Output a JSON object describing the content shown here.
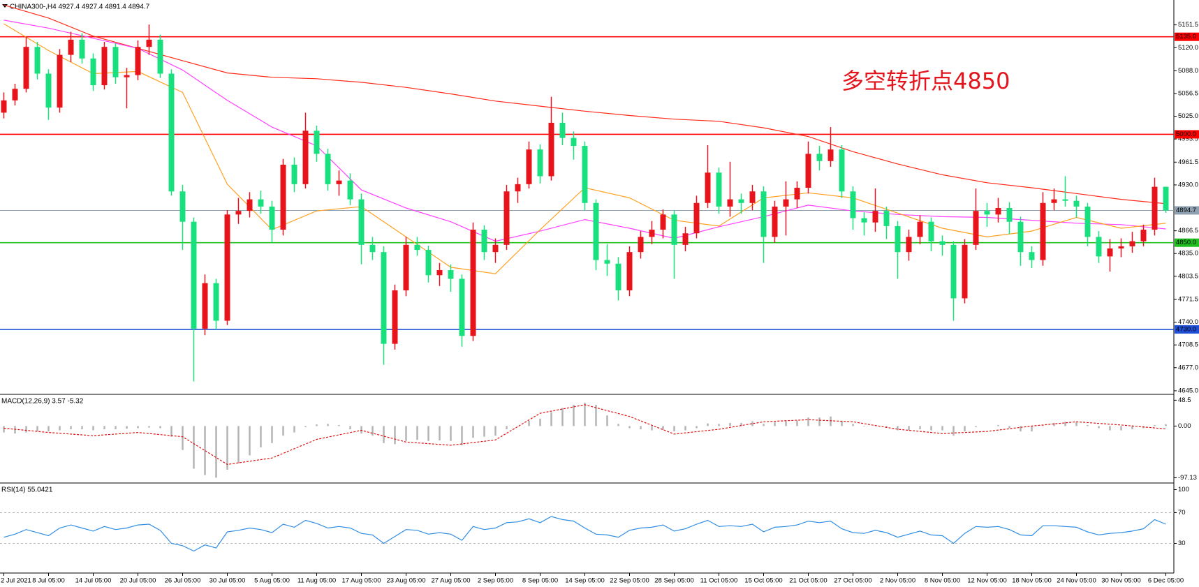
{
  "chart_data": [
    {
      "type": "candlestick",
      "title": "CHINA300-,H4  4927.4 4927.4 4891.4 4894.7",
      "annotation": "多空转折点4850",
      "up_color": "#e8141c",
      "down_color": "#19e07f",
      "ylim": [
        4642,
        5184
      ],
      "yticks": [
        5151.5,
        {
          "value": 5120,
          "label": "5120.0"
        },
        {
          "value": 5088,
          "label": "5088.0"
        },
        5056.5,
        {
          "value": 5025,
          "label": "5025.0"
        },
        4993.5,
        4961.5,
        {
          "value": 4930,
          "label": "4930.0"
        },
        4866.5,
        {
          "value": 4835,
          "label": "4835.0"
        },
        4803.5,
        4771.5,
        {
          "value": 4740,
          "label": "4740.0"
        },
        4708.5,
        {
          "value": 4677,
          "label": "4677.0"
        },
        {
          "value": 4645,
          "label": "4645.0"
        }
      ],
      "levels": [
        {
          "value": 5135,
          "label": "5135.0",
          "color": "#ff0000",
          "text_color": "#ffffff"
        },
        {
          "value": 5000,
          "label": "5000.0",
          "color": "#ff0000",
          "text_color": "#ffffff"
        },
        {
          "value": 4894.7,
          "label": "4894.7",
          "color": "#8fa0b0",
          "text_color": "#000000"
        },
        {
          "value": 4850,
          "label": "4850.0",
          "color": "#1fbf1f",
          "text_color": "#ffffff"
        },
        {
          "value": 4730,
          "label": "4730.0",
          "color": "#1f4fd6",
          "text_color": "#ffffff"
        }
      ],
      "xticks": [
        {
          "value": 0,
          "label": "2 Jul 2021"
        },
        {
          "value": 4,
          "label": "8 Jul 05:00"
        },
        {
          "value": 8,
          "label": "14 Jul 05:00"
        },
        {
          "value": 12,
          "label": "20 Jul 05:00"
        },
        {
          "value": 16,
          "label": "26 Jul 05:00"
        },
        {
          "value": 20,
          "label": "30 Jul 05:00"
        },
        {
          "value": 24,
          "label": "5 Aug 05:00"
        },
        {
          "value": 28,
          "label": "11 Aug 05:00"
        },
        {
          "value": 32,
          "label": "17 Aug 05:00"
        },
        {
          "value": 36,
          "label": "23 Aug 05:00"
        },
        {
          "value": 40,
          "label": "27 Aug 05:00"
        },
        {
          "value": 44,
          "label": "2 Sep 05:00"
        },
        {
          "value": 48,
          "label": "8 Sep 05:00"
        },
        {
          "value": 52,
          "label": "14 Sep 05:00"
        },
        {
          "value": 56,
          "label": "22 Sep 05:00"
        },
        {
          "value": 60,
          "label": "28 Sep 05:00"
        },
        {
          "value": 64,
          "label": "11 Oct 05:00"
        },
        {
          "value": 68,
          "label": "15 Oct 05:00"
        },
        {
          "value": 72,
          "label": "21 Oct 05:00"
        },
        {
          "value": 76,
          "label": "27 Oct 05:00"
        },
        {
          "value": 80,
          "label": "2 Nov 05:00"
        },
        {
          "value": 84,
          "label": "8 Nov 05:00"
        },
        {
          "value": 88,
          "label": "12 Nov 05:00"
        },
        {
          "value": 92,
          "label": "18 Nov 05:00"
        },
        {
          "value": 96,
          "label": "24 Nov 05:00"
        },
        {
          "value": 100,
          "label": "30 Nov 05:00"
        },
        {
          "value": 104,
          "label": "6 Dec 05:00"
        }
      ],
      "ohlc": [
        [
          5030,
          5058,
          5022,
          5047
        ],
        [
          5047,
          5070,
          5040,
          5063
        ],
        [
          5063,
          5135,
          5058,
          5121
        ],
        [
          5121,
          5128,
          5076,
          5084
        ],
        [
          5084,
          5090,
          5020,
          5037
        ],
        [
          5037,
          5118,
          5030,
          5110
        ],
        [
          5110,
          5142,
          5100,
          5131
        ],
        [
          5131,
          5140,
          5098,
          5105
        ],
        [
          5105,
          5112,
          5060,
          5068
        ],
        [
          5068,
          5128,
          5062,
          5121
        ],
        [
          5121,
          5126,
          5070,
          5079
        ],
        [
          5079,
          5092,
          5036,
          5082
        ],
        [
          5082,
          5130,
          5075,
          5121
        ],
        [
          5121,
          5152,
          5110,
          5131
        ],
        [
          5131,
          5138,
          5078,
          5084
        ],
        [
          5084,
          5090,
          4915,
          4921
        ],
        [
          4921,
          4930,
          4840,
          4879
        ],
        [
          4879,
          4885,
          4658,
          4731
        ],
        [
          4731,
          4806,
          4722,
          4794
        ],
        [
          4794,
          4800,
          4730,
          4742
        ],
        [
          4742,
          4895,
          4736,
          4889
        ],
        [
          4889,
          4912,
          4876,
          4894
        ],
        [
          4894,
          4920,
          4885,
          4910
        ],
        [
          4910,
          4922,
          4890,
          4900
        ],
        [
          4900,
          4908,
          4850,
          4868
        ],
        [
          4868,
          4966,
          4860,
          4958
        ],
        [
          4958,
          4968,
          4920,
          4931
        ],
        [
          4931,
          5030,
          4925,
          5005
        ],
        [
          5005,
          5012,
          4962,
          4973
        ],
        [
          4973,
          4980,
          4922,
          4931
        ],
        [
          4931,
          4950,
          4915,
          4936
        ],
        [
          4936,
          4946,
          4902,
          4910
        ],
        [
          4910,
          4918,
          4820,
          4847
        ],
        [
          4847,
          4858,
          4826,
          4837
        ],
        [
          4837,
          4845,
          4681,
          4710
        ],
        [
          4710,
          4792,
          4702,
          4784
        ],
        [
          4784,
          4858,
          4776,
          4847
        ],
        [
          4847,
          4858,
          4832,
          4840
        ],
        [
          4840,
          4846,
          4795,
          4805
        ],
        [
          4805,
          4822,
          4790,
          4812
        ],
        [
          4812,
          4820,
          4782,
          4800
        ],
        [
          4800,
          4806,
          4706,
          4721
        ],
        [
          4721,
          4878,
          4714,
          4868
        ],
        [
          4868,
          4874,
          4826,
          4837
        ],
        [
          4837,
          4856,
          4822,
          4847
        ],
        [
          4847,
          4930,
          4840,
          4921
        ],
        [
          4921,
          4940,
          4905,
          4931
        ],
        [
          4931,
          4990,
          4925,
          4979
        ],
        [
          4979,
          4986,
          4932,
          4942
        ],
        [
          4942,
          5052,
          4936,
          5016
        ],
        [
          5016,
          5030,
          4985,
          4995
        ],
        [
          4995,
          5004,
          4965,
          4984
        ],
        [
          4984,
          4990,
          4895,
          4905
        ],
        [
          4905,
          4910,
          4812,
          4826
        ],
        [
          4826,
          4848,
          4804,
          4821
        ],
        [
          4821,
          4830,
          4770,
          4784
        ],
        [
          4784,
          4845,
          4776,
          4837
        ],
        [
          4837,
          4866,
          4828,
          4858
        ],
        [
          4858,
          4880,
          4848,
          4868
        ],
        [
          4868,
          4896,
          4856,
          4889
        ],
        [
          4889,
          4895,
          4800,
          4847
        ],
        [
          4847,
          4872,
          4838,
          4863
        ],
        [
          4863,
          4915,
          4856,
          4905
        ],
        [
          4905,
          4985,
          4898,
          4947
        ],
        [
          4947,
          4954,
          4890,
          4900
        ],
        [
          4900,
          4962,
          4886,
          4910
        ],
        [
          4910,
          4918,
          4890,
          4905
        ],
        [
          4905,
          4930,
          4895,
          4921
        ],
        [
          4921,
          4928,
          4822,
          4858
        ],
        [
          4858,
          4908,
          4850,
          4900
        ],
        [
          4900,
          4935,
          4860,
          4910
        ],
        [
          4910,
          4935,
          4898,
          4926
        ],
        [
          4926,
          4990,
          4918,
          4973
        ],
        [
          4973,
          4984,
          4950,
          4963
        ],
        [
          4963,
          5010,
          4955,
          4979
        ],
        [
          4979,
          4985,
          4912,
          4921
        ],
        [
          4921,
          4928,
          4868,
          4884
        ],
        [
          4884,
          4892,
          4860,
          4878
        ],
        [
          4878,
          4925,
          4865,
          4894
        ],
        [
          4894,
          4900,
          4855,
          4873
        ],
        [
          4873,
          4880,
          4800,
          4837
        ],
        [
          4837,
          4868,
          4825,
          4858
        ],
        [
          4858,
          4888,
          4848,
          4879
        ],
        [
          4879,
          4885,
          4838,
          4852
        ],
        [
          4852,
          4860,
          4832,
          4847
        ],
        [
          4847,
          4852,
          4742,
          4773
        ],
        [
          4773,
          4855,
          4766,
          4847
        ],
        [
          4847,
          4925,
          4840,
          4894
        ],
        [
          4894,
          4905,
          4872,
          4889
        ],
        [
          4889,
          4912,
          4878,
          4898
        ],
        [
          4898,
          4906,
          4862,
          4879
        ],
        [
          4879,
          4886,
          4818,
          4837
        ],
        [
          4837,
          4845,
          4815,
          4826
        ],
        [
          4826,
          4920,
          4818,
          4905
        ],
        [
          4905,
          4925,
          4895,
          4910
        ],
        [
          4910,
          4942,
          4900,
          4908
        ],
        [
          4908,
          4915,
          4885,
          4900
        ],
        [
          4900,
          4905,
          4845,
          4858
        ],
        [
          4858,
          4866,
          4822,
          4831
        ],
        [
          4831,
          4855,
          4810,
          4842
        ],
        [
          4842,
          4856,
          4830,
          4845
        ],
        [
          4845,
          4865,
          4836,
          4852
        ],
        [
          4852,
          4875,
          4845,
          4868
        ],
        [
          4868,
          4940,
          4860,
          4927.4
        ],
        [
          4927.4,
          4927.4,
          4891.4,
          4894.7
        ]
      ],
      "x": [
        0,
        4,
        8,
        12,
        16,
        20,
        24,
        28,
        32,
        36,
        40,
        44,
        48,
        52,
        56,
        60,
        64,
        68,
        72,
        76,
        80,
        84,
        88,
        92,
        96,
        100,
        104
      ],
      "series": [
        {
          "color": "#ff2a1a",
          "values": [
            5179,
            5161,
            5136,
            5119,
            5102,
            5085,
            5079,
            5077,
            5072,
            5065,
            5056,
            5046,
            5039,
            5032,
            5026,
            5021,
            5018,
            5009,
            4997,
            4976,
            4959,
            4944,
            4933,
            4926,
            4918,
            4910,
            4904
          ]
        },
        {
          "color": "#ff40ff",
          "values": [
            5158,
            5147,
            5133,
            5119,
            5089,
            5047,
            5010,
            4984,
            4923,
            4898,
            4879,
            4852,
            4866,
            4882,
            4870,
            4856,
            4872,
            4886,
            4902,
            4894,
            4889,
            4886,
            4885,
            4881,
            4877,
            4875,
            4869
          ]
        },
        {
          "color": "#ffa020",
          "values": [
            5153,
            5116,
            5084,
            5087,
            5058,
            4931,
            4868,
            4894,
            4900,
            4858,
            4816,
            4807,
            4868,
            4926,
            4912,
            4881,
            4873,
            4912,
            4919,
            4912,
            4891,
            4870,
            4858,
            4866,
            4885,
            4870,
            4877
          ]
        }
      ]
    },
    {
      "type": "macd",
      "title": "MACD(12,26,9) 3.57 -5.32",
      "ylim": [
        -104.3,
        55.6
      ],
      "yticks": [
        48.5,
        {
          "value": 0,
          "label": "0.00"
        },
        -97.13
      ],
      "color": "#b4b4b4",
      "values": [
        -12,
        -14,
        -12,
        -10,
        -10,
        -8,
        -6,
        -6,
        -8,
        -6,
        -6,
        -5,
        -4,
        -3,
        -4,
        -20,
        -45,
        -80,
        -92,
        -97,
        -82,
        -70,
        -55,
        -40,
        -32,
        -18,
        -12,
        -2,
        3,
        4,
        2,
        -6,
        -14,
        -18,
        -32,
        -34,
        -28,
        -26,
        -28,
        -27,
        -28,
        -36,
        -22,
        -20,
        -18,
        -6,
        0,
        10,
        14,
        26,
        34,
        40,
        44,
        40,
        20,
        4,
        -4,
        -6,
        -8,
        -7,
        -10,
        -8,
        -4,
        5,
        4,
        6,
        6,
        9,
        4,
        7,
        9,
        10,
        16,
        16,
        18,
        10,
        4,
        -1,
        0,
        -2,
        -8,
        -8,
        -6,
        -8,
        -8,
        -18,
        -10,
        -2,
        0,
        2,
        -4,
        -10,
        -10,
        2,
        6,
        8,
        8,
        2,
        -4,
        -8,
        -8,
        -6,
        -4,
        2,
        3.57
      ],
      "signal": {
        "color": "#e01010",
        "x": [
          0,
          4,
          8,
          12,
          16,
          20,
          24,
          28,
          32,
          36,
          40,
          44,
          48,
          52,
          56,
          60,
          64,
          68,
          72,
          76,
          80,
          84,
          88,
          92,
          96,
          100,
          104
        ],
        "values": [
          -4,
          -12,
          -18,
          -12,
          -20,
          -72,
          -60,
          -25,
          -8,
          -30,
          -36,
          -26,
          24,
          40,
          18,
          -15,
          -6,
          8,
          12,
          8,
          -6,
          -14,
          -10,
          0,
          8,
          2,
          -5.32
        ]
      }
    },
    {
      "type": "line",
      "title": "RSI(14) 55.0421",
      "ylim": [
        -6.8,
        106.8
      ],
      "yticks": [
        100,
        70,
        30
      ],
      "levels": [
        70,
        30
      ],
      "color": "#2f8de4",
      "values": [
        38,
        42,
        48,
        44,
        40,
        50,
        54,
        50,
        46,
        52,
        48,
        50,
        54,
        55,
        47,
        30,
        27,
        20,
        28,
        24,
        45,
        47,
        50,
        48,
        44,
        55,
        51,
        60,
        56,
        50,
        52,
        50,
        43,
        41,
        30,
        39,
        48,
        47,
        42,
        44,
        42,
        34,
        52,
        48,
        50,
        57,
        58,
        62,
        57,
        65,
        61,
        59,
        50,
        42,
        41,
        38,
        47,
        50,
        51,
        54,
        46,
        49,
        55,
        60,
        52,
        53,
        52,
        55,
        45,
        51,
        52,
        54,
        59,
        57,
        59,
        49,
        44,
        43,
        47,
        44,
        38,
        42,
        46,
        41,
        40,
        30,
        43,
        52,
        51,
        52,
        48,
        41,
        40,
        53,
        53,
        52,
        51,
        45,
        41,
        43,
        44,
        46,
        49,
        61,
        55.0421
      ]
    }
  ]
}
